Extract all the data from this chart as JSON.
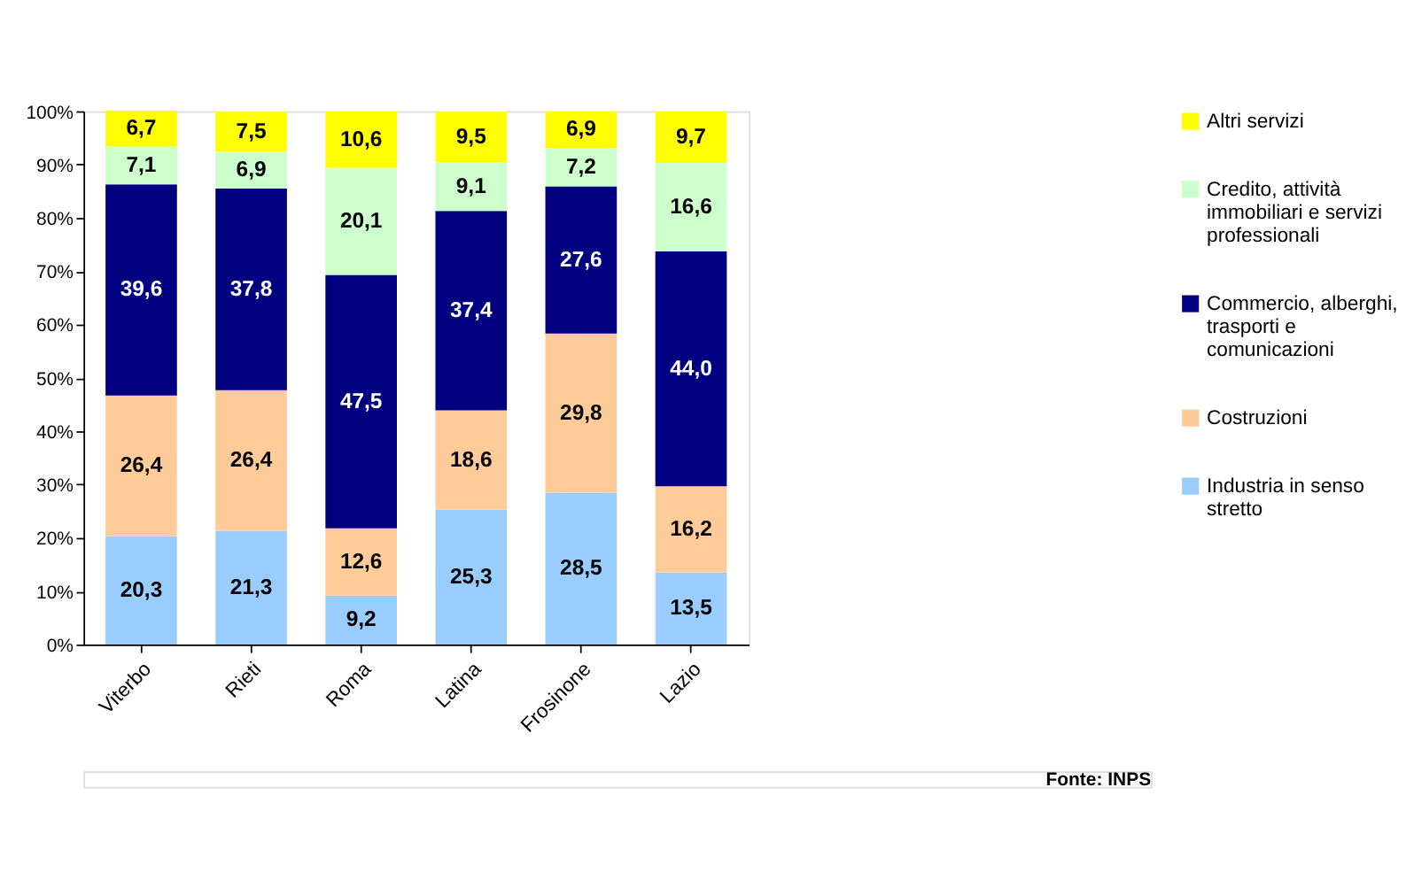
{
  "chart_data": {
    "type": "bar",
    "stacked": true,
    "categories": [
      "Viterbo",
      "Rieti",
      "Roma",
      "Latina",
      "Frosinone",
      "Lazio"
    ],
    "series": [
      {
        "name": "Industria in senso stretto",
        "color": "#99ccff",
        "values": [
          20.3,
          21.3,
          9.2,
          25.3,
          28.5,
          13.5
        ],
        "value_labels": [
          "20,3",
          "21,3",
          "9,2",
          "25,3",
          "28,5",
          "13,5"
        ]
      },
      {
        "name": "Costruzioni",
        "color": "#ffcc99",
        "values": [
          26.4,
          26.4,
          12.6,
          18.6,
          29.8,
          16.2
        ],
        "value_labels": [
          "26,4",
          "26,4",
          "12,6",
          "18,6",
          "29,8",
          "16,2"
        ]
      },
      {
        "name": "Commercio, alberghi, trasporti e comunicazioni",
        "color": "#000080",
        "values": [
          39.6,
          37.8,
          47.5,
          37.4,
          27.6,
          44.0
        ],
        "value_labels": [
          "39,6",
          "37,8",
          "47,5",
          "37,4",
          "27,6",
          "44,0"
        ]
      },
      {
        "name": "Credito, attività immobiliari e servizi professionali",
        "color": "#ccffcc",
        "values": [
          7.1,
          6.9,
          20.1,
          9.1,
          7.2,
          16.6
        ],
        "value_labels": [
          "7,1",
          "6,9",
          "20,1",
          "9,1",
          "7,2",
          "16,6"
        ]
      },
      {
        "name": "Altri servizi",
        "color": "#ffff00",
        "values": [
          6.7,
          7.5,
          10.6,
          9.5,
          6.9,
          9.7
        ],
        "value_labels": [
          "6,7",
          "7,5",
          "10,6",
          "9,5",
          "6,9",
          "9,7"
        ]
      }
    ],
    "ylim": [
      0,
      100
    ],
    "yticks": [
      {
        "value": 0,
        "label": "0%"
      },
      {
        "value": 10,
        "label": "10%"
      },
      {
        "value": 20,
        "label": "20%"
      },
      {
        "value": 30,
        "label": "30%"
      },
      {
        "value": 40,
        "label": "40%"
      },
      {
        "value": 50,
        "label": "50%"
      },
      {
        "value": 60,
        "label": "60%"
      },
      {
        "value": 70,
        "label": "70%"
      },
      {
        "value": 80,
        "label": "80%"
      },
      {
        "value": 90,
        "label": "90%"
      },
      {
        "value": 100,
        "label": "100%"
      }
    ],
    "grid": false,
    "legend": "right",
    "data_labels": false,
    "annotations": [
      "Fonte: INPS"
    ]
  }
}
